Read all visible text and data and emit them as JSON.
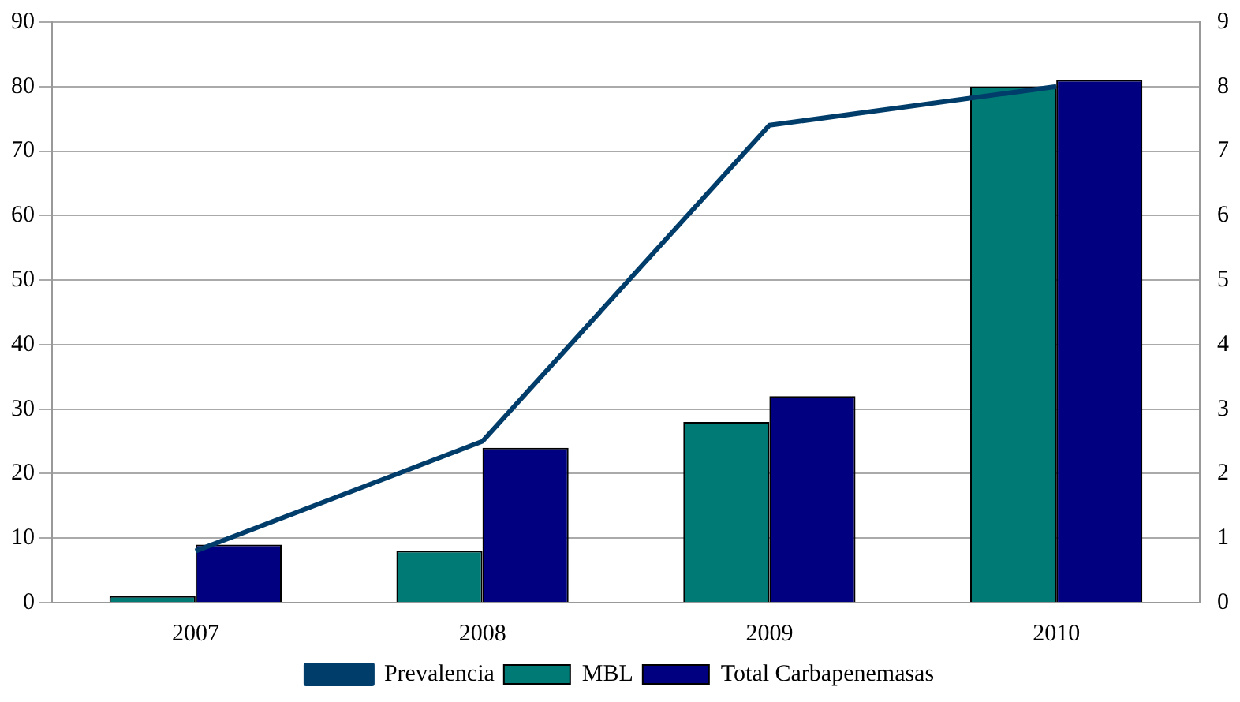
{
  "chart_data": {
    "type": "bar",
    "categories": [
      "2007",
      "2008",
      "2009",
      "2010"
    ],
    "series": [
      {
        "name": "MBL",
        "color": "#007a74",
        "values": [
          1,
          8,
          28,
          80
        ]
      },
      {
        "name": "Total Carbapenemasas",
        "color": "#000080",
        "values": [
          9,
          24,
          32,
          81
        ]
      },
      {
        "name": "Prevalencia",
        "type": "line",
        "axis": "y2",
        "color": "#003d6b",
        "values": [
          0.8,
          2.5,
          7.4,
          8.0
        ]
      }
    ],
    "ylim": [
      0,
      90
    ],
    "yticks": [
      0,
      10,
      20,
      30,
      40,
      50,
      60,
      70,
      80,
      90
    ],
    "y2lim": [
      0,
      9
    ],
    "y2ticks": [
      0,
      1,
      2,
      3,
      4,
      5,
      6,
      7,
      8,
      9
    ],
    "grid": "y",
    "legend": "bottom",
    "marker": "none",
    "line_style": "solid"
  }
}
